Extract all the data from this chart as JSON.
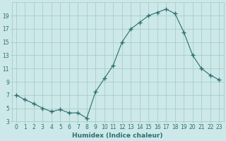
{
  "x": [
    0,
    1,
    2,
    3,
    4,
    5,
    6,
    7,
    8,
    9,
    10,
    11,
    12,
    13,
    14,
    15,
    16,
    17,
    18,
    19,
    20,
    21,
    22,
    23
  ],
  "y": [
    7.0,
    6.3,
    5.7,
    5.0,
    4.5,
    4.8,
    4.3,
    4.3,
    3.5,
    7.5,
    9.5,
    11.5,
    15.0,
    17.0,
    18.0,
    19.0,
    19.5,
    20.0,
    19.3,
    16.5,
    13.0,
    11.0,
    10.0,
    9.3
  ],
  "xlabel": "Humidex (Indice chaleur)",
  "line_color": "#2d6e6e",
  "marker": "+",
  "marker_size": 4,
  "bg_color": "#cce8e8",
  "grid_color": "#aacccc",
  "xlim": [
    -0.5,
    23.5
  ],
  "ylim": [
    3,
    21
  ],
  "yticks": [
    3,
    5,
    7,
    9,
    11,
    13,
    15,
    17,
    19
  ],
  "xticks": [
    0,
    1,
    2,
    3,
    4,
    5,
    6,
    7,
    8,
    9,
    10,
    11,
    12,
    13,
    14,
    15,
    16,
    17,
    18,
    19,
    20,
    21,
    22,
    23
  ],
  "tick_label_fontsize": 5.5,
  "xlabel_fontsize": 6.5,
  "label_color": "#2d6e6e"
}
